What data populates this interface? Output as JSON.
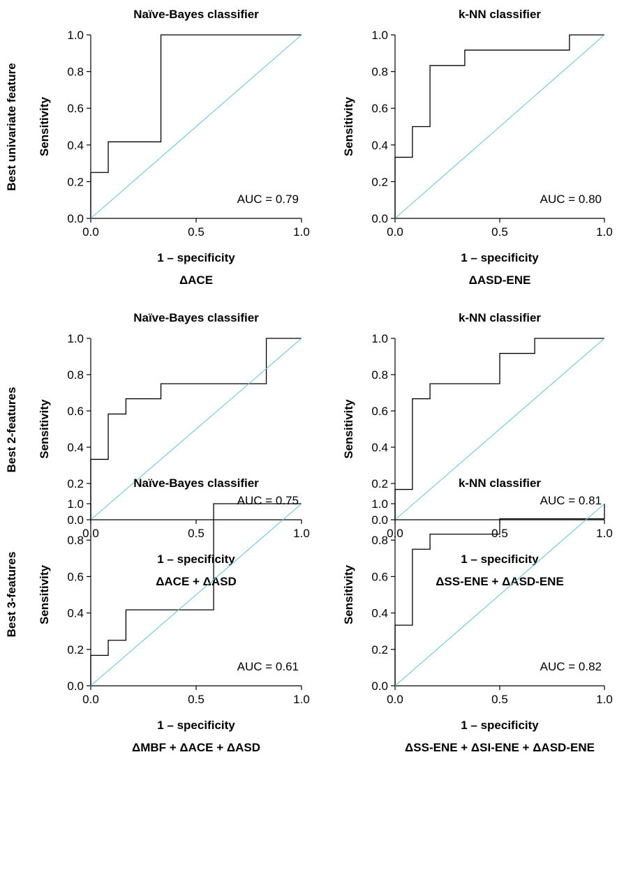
{
  "row_labels": [
    "Best univariate feature",
    "Best 2-features",
    "Best 3-features"
  ],
  "chart_data": [
    {
      "type": "line",
      "title": "Naïve-Bayes classifier",
      "xlabel": "1 – specificity",
      "ylabel": "Sensitivity",
      "feature": "ΔACE",
      "auc_label": "AUC = 0.79",
      "xlim": [
        0,
        1
      ],
      "ylim": [
        0,
        1
      ],
      "x_ticks": [
        "0.0",
        "0.5",
        "1.0"
      ],
      "y_ticks": [
        "0.0",
        "0.2",
        "0.4",
        "0.6",
        "0.8",
        "1.0"
      ],
      "series": [
        {
          "x": [
            0,
            0,
            0.083,
            0.083,
            0.333,
            0.333,
            1.0
          ],
          "y": [
            0,
            0.25,
            0.25,
            0.417,
            0.417,
            1.0,
            1.0
          ],
          "color": "#000000"
        },
        {
          "x": [
            0,
            1
          ],
          "y": [
            0,
            1
          ],
          "color": "#6cc4de"
        }
      ]
    },
    {
      "type": "line",
      "title": "k-NN classifier",
      "xlabel": "1 – specificity",
      "ylabel": "Sensitivity",
      "feature": "ΔASD-ENE",
      "auc_label": "AUC = 0.80",
      "xlim": [
        0,
        1
      ],
      "ylim": [
        0,
        1
      ],
      "x_ticks": [
        "0.0",
        "0.5",
        "1.0"
      ],
      "y_ticks": [
        "0.0",
        "0.2",
        "0.4",
        "0.6",
        "0.8",
        "1.0"
      ],
      "series": [
        {
          "x": [
            0,
            0,
            0.083,
            0.083,
            0.167,
            0.167,
            0.333,
            0.333,
            0.833,
            0.833,
            1.0
          ],
          "y": [
            0,
            0.333,
            0.333,
            0.5,
            0.5,
            0.833,
            0.833,
            0.917,
            0.917,
            1.0,
            1.0
          ],
          "color": "#000000"
        },
        {
          "x": [
            0,
            1
          ],
          "y": [
            0,
            1
          ],
          "color": "#6cc4de"
        }
      ]
    },
    {
      "type": "line",
      "title": "Naïve-Bayes classifier",
      "xlabel": "1 – specificity",
      "ylabel": "Sensitivity",
      "feature": "ΔACE + ΔASD",
      "auc_label": "AUC = 0.75",
      "xlim": [
        0,
        1
      ],
      "ylim": [
        0,
        1
      ],
      "x_ticks": [
        "0.0",
        "0.5",
        "1.0"
      ],
      "y_ticks": [
        "0.0",
        "0.2",
        "0.4",
        "0.6",
        "0.8",
        "1.0"
      ],
      "series": [
        {
          "x": [
            0,
            0,
            0.083,
            0.083,
            0.167,
            0.167,
            0.333,
            0.333,
            0.833,
            0.833,
            1.0
          ],
          "y": [
            0,
            0.333,
            0.333,
            0.583,
            0.583,
            0.667,
            0.667,
            0.75,
            0.75,
            1.0,
            1.0
          ],
          "color": "#000000"
        },
        {
          "x": [
            0,
            1
          ],
          "y": [
            0,
            1
          ],
          "color": "#6cc4de"
        }
      ]
    },
    {
      "type": "line",
      "title": "k-NN classifier",
      "xlabel": "1 – specificity",
      "ylabel": "Sensitivity",
      "feature": "ΔSS-ENE + ΔASD-ENE",
      "auc_label": "AUC = 0.81",
      "xlim": [
        0,
        1
      ],
      "ylim": [
        0,
        1
      ],
      "x_ticks": [
        "0.0",
        "0.5",
        "1.0"
      ],
      "y_ticks": [
        "0.0",
        "0.2",
        "0.4",
        "0.6",
        "0.8",
        "1.0"
      ],
      "series": [
        {
          "x": [
            0,
            0,
            0.083,
            0.083,
            0.167,
            0.167,
            0.5,
            0.5,
            0.667,
            0.667,
            1.0
          ],
          "y": [
            0,
            0.167,
            0.167,
            0.667,
            0.667,
            0.75,
            0.75,
            0.917,
            0.917,
            1.0,
            1.0
          ],
          "color": "#000000"
        },
        {
          "x": [
            0,
            1
          ],
          "y": [
            0,
            1
          ],
          "color": "#6cc4de"
        }
      ]
    },
    {
      "type": "line",
      "title": "Naïve-Bayes classifier",
      "xlabel": "1 – specificity",
      "ylabel": "Sensitivity",
      "feature": "ΔMBF + ΔACE + ΔASD",
      "auc_label": "AUC = 0.61",
      "xlim": [
        0,
        1
      ],
      "ylim": [
        0,
        1
      ],
      "x_ticks": [
        "0.0",
        "0.5",
        "1.0"
      ],
      "y_ticks": [
        "0.0",
        "0.2",
        "0.4",
        "0.6",
        "0.8",
        "1.0"
      ],
      "series": [
        {
          "x": [
            0,
            0,
            0.083,
            0.083,
            0.167,
            0.167,
            0.583,
            0.583,
            1.0
          ],
          "y": [
            0,
            0.167,
            0.167,
            0.25,
            0.25,
            0.417,
            0.417,
            1.0,
            1.0
          ],
          "color": "#000000"
        },
        {
          "x": [
            0,
            1
          ],
          "y": [
            0,
            1
          ],
          "color": "#6cc4de"
        }
      ]
    },
    {
      "type": "line",
      "title": "k-NN classifier",
      "xlabel": "1 – specificity",
      "ylabel": "Sensitivity",
      "feature": "ΔSS-ENE + ΔSI-ENE + ΔASD-ENE",
      "auc_label": "AUC = 0.82",
      "xlim": [
        0,
        1
      ],
      "ylim": [
        0,
        1
      ],
      "x_ticks": [
        "0.0",
        "0.5",
        "1.0"
      ],
      "y_ticks": [
        "0.0",
        "0.2",
        "0.4",
        "0.6",
        "0.8",
        "1.0"
      ],
      "series": [
        {
          "x": [
            0,
            0,
            0.083,
            0.083,
            0.167,
            0.167,
            0.5,
            0.5,
            1.0,
            1.0
          ],
          "y": [
            0,
            0.333,
            0.333,
            0.75,
            0.75,
            0.833,
            0.833,
            0.917,
            0.917,
            1.0
          ],
          "color": "#000000"
        },
        {
          "x": [
            0,
            1
          ],
          "y": [
            0,
            1
          ],
          "color": "#6cc4de"
        }
      ]
    }
  ]
}
